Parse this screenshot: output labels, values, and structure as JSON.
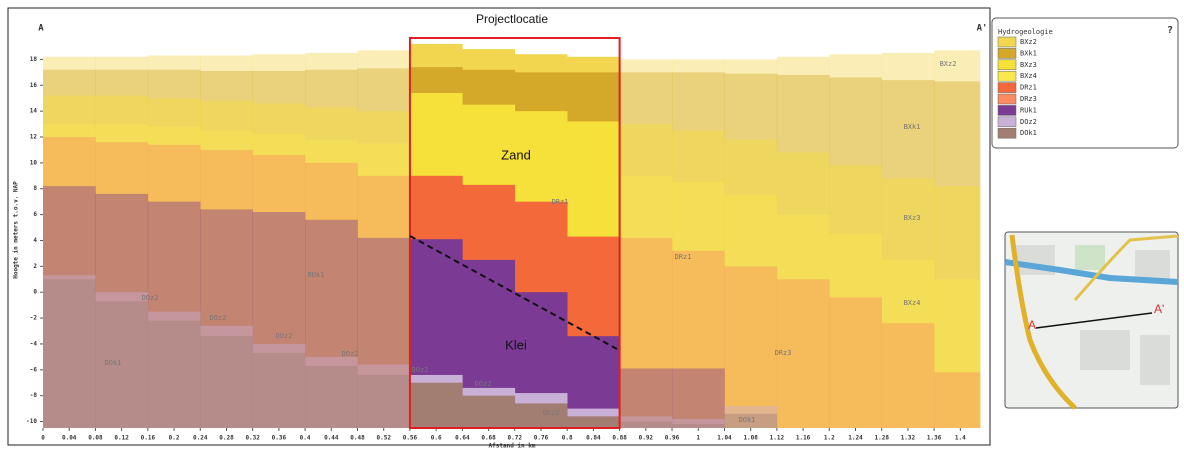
{
  "chart_data": {
    "type": "cross-section",
    "title": "Projectlocatie",
    "start_label": "A",
    "end_label": "A'",
    "xlabel": "Afstand in km",
    "ylabel": "Hoogte in meters t.o.v. NAP",
    "annotations": [
      "Zand",
      "Klei"
    ],
    "legend_title": "Hydrogeologie",
    "x": [
      0,
      0.08,
      0.16,
      0.24,
      0.32,
      0.4,
      0.48,
      0.56,
      0.64,
      0.72,
      0.8,
      0.88,
      0.96,
      1.04,
      1.12,
      1.2,
      1.28,
      1.36
    ],
    "xlim": [
      0,
      1.43
    ],
    "ylim": [
      -10.5,
      19.5
    ],
    "xticks": [
      0,
      0.04,
      0.08,
      0.12,
      0.16,
      0.2,
      0.24,
      0.28,
      0.32,
      0.36,
      0.4,
      0.44,
      0.48,
      0.52,
      0.56,
      0.6,
      0.64,
      0.68,
      0.72,
      0.76,
      0.8,
      0.84,
      0.88,
      0.92,
      0.96,
      1,
      1.04,
      1.08,
      1.12,
      1.16,
      1.2,
      1.24,
      1.28,
      1.32,
      1.36,
      1.4
    ],
    "yticks": [
      -10,
      -8,
      -6,
      -4,
      -2,
      0,
      2,
      4,
      6,
      8,
      10,
      12,
      14,
      16,
      18
    ],
    "series": [
      {
        "name": "BXz2",
        "color": "#f3d650",
        "values": [
          18.2,
          18.2,
          18.3,
          18.3,
          18.4,
          18.5,
          18.7,
          19.2,
          18.8,
          18.4,
          18.2,
          18.0,
          18.0,
          18.0,
          18.2,
          18.4,
          18.5,
          18.7
        ]
      },
      {
        "name": "BXk1",
        "color": "#d4a92a",
        "values": [
          17.2,
          17.2,
          17.2,
          17.1,
          17.1,
          17.2,
          17.3,
          17.4,
          17.2,
          17.0,
          17.0,
          17.0,
          17.0,
          16.9,
          16.8,
          16.6,
          16.4,
          16.3
        ]
      },
      {
        "name": "BXz3",
        "color": "#f6e03a",
        "values": [
          15.2,
          15.2,
          15.0,
          14.8,
          14.6,
          14.3,
          14.0,
          15.4,
          14.5,
          14.0,
          13.2,
          13.0,
          12.5,
          11.8,
          10.8,
          9.8,
          8.8,
          8.2
        ]
      },
      {
        "name": "BXz4",
        "color": "#fbe84c",
        "values": [
          13.0,
          13.0,
          12.8,
          12.5,
          12.2,
          11.8,
          11.5,
          null,
          null,
          null,
          null,
          9.0,
          8.5,
          7.5,
          6.0,
          4.5,
          2.5,
          1.0
        ]
      },
      {
        "name": "DRz1",
        "color": "#f4693a",
        "values": [
          null,
          null,
          null,
          null,
          null,
          null,
          null,
          9.0,
          8.3,
          7.0,
          4.3,
          null,
          null,
          null,
          null,
          null,
          null,
          null
        ]
      },
      {
        "name": "DRz3",
        "color": "#f98a62",
        "values": [
          12.0,
          11.6,
          11.4,
          11.0,
          10.6,
          10.0,
          9.0,
          null,
          null,
          null,
          null,
          4.2,
          3.2,
          2.0,
          1.0,
          -0.4,
          -2.4,
          -6.2
        ]
      },
      {
        "name": "RUk1",
        "color": "#7b3a94",
        "values": [
          8.2,
          7.6,
          7.0,
          6.4,
          6.2,
          5.6,
          4.2,
          4.1,
          2.5,
          0.0,
          -3.4,
          -5.9,
          -5.9,
          null,
          null,
          null,
          null,
          null
        ]
      },
      {
        "name": "DOz2",
        "color": "#c9b0d6",
        "values": [
          1.3,
          0.0,
          -1.5,
          -2.6,
          -4.0,
          -5.0,
          -5.6,
          -6.4,
          -7.4,
          -7.8,
          -9.0,
          -9.6,
          -9.8,
          -8.8,
          null,
          null,
          null,
          null
        ]
      },
      {
        "name": "DOk1",
        "color": "#a27e72",
        "values": [
          1.0,
          -0.7,
          -2.2,
          -3.4,
          -4.7,
          -5.7,
          -6.4,
          -7.0,
          -8.0,
          -8.6,
          -9.6,
          -10.0,
          -10.2,
          -9.4,
          null,
          null,
          null,
          null
        ]
      }
    ]
  },
  "legend_help": "?",
  "map": {
    "start": "A",
    "end": "A'"
  }
}
